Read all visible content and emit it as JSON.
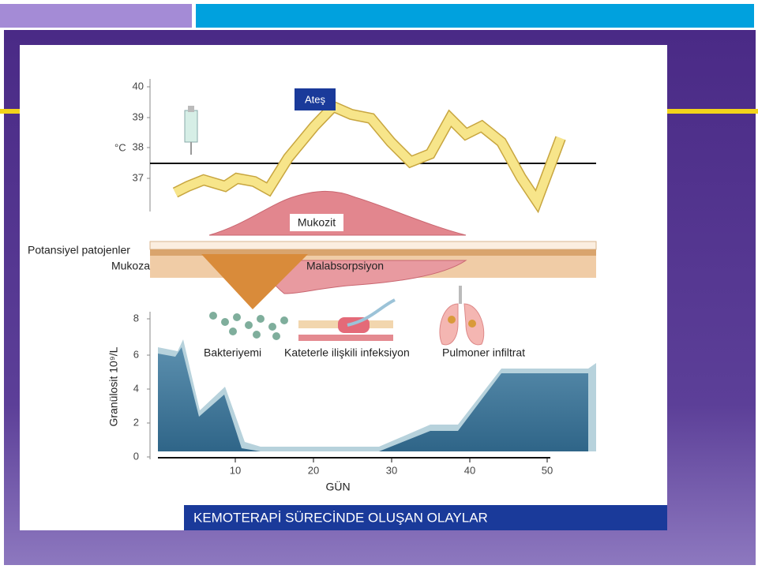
{
  "slide": {
    "caption": "KEMOTERAPİ SÜRECİNDE OLUŞAN OLAYLAR"
  },
  "figure": {
    "fever_label": "Ateş",
    "temp_unit": "°C",
    "temp_ticks": [
      "40",
      "39",
      "38",
      "37"
    ],
    "mucositis_label": "Mukozit",
    "pathogens_label": "Potansiyel patojenler",
    "mucosa_label": "Mukoza",
    "malabsorption_label": "Malabsorpsiyon",
    "events": [
      "Bakteriyemi",
      "Kateterle ilişkili infeksiyon",
      "Pulmoner  infiltrat"
    ],
    "granulocyte_axis_label": "Granülosit 10⁹/L",
    "granulocyte_ticks": [
      "8",
      "6",
      "4",
      "2",
      "0"
    ],
    "day_ticks": [
      "10",
      "20",
      "30",
      "40",
      "50"
    ],
    "day_axis_label": "GÜN"
  }
}
